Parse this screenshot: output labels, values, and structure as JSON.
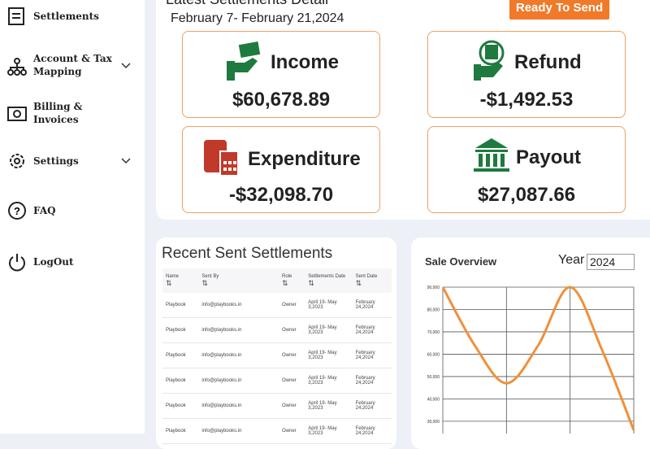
{
  "sidebar": {
    "items": [
      {
        "label": "Settlements"
      },
      {
        "label": "Account & Tax Mapping"
      },
      {
        "label": "Billing & Invoices"
      },
      {
        "label": "Settings"
      },
      {
        "label": "FAQ"
      },
      {
        "label": "LogOut"
      }
    ]
  },
  "summary": {
    "title": "Latest Settlements Detail",
    "date_range": "February 7- February 21,2024",
    "button": "Ready To Send",
    "cards": [
      {
        "label": "Income",
        "amount": "$60,678.89"
      },
      {
        "label": "Refund",
        "amount": "-$1,492.53"
      },
      {
        "label": "Expenditure",
        "amount": "-$32,098.70"
      },
      {
        "label": "Payout",
        "amount": "$27,087.66"
      }
    ]
  },
  "recent": {
    "title": "Recent Sent Settlements",
    "columns": [
      "Name",
      "Sent By",
      "Role",
      "Settlements Date",
      "Sent Date"
    ],
    "rows": [
      [
        "Playbook",
        "info@playbooks.in",
        "Owner",
        "April 19- May 3,2023",
        "February 24,2024"
      ],
      [
        "Playbook",
        "info@playbooks.in",
        "Owner",
        "April 19- May 3,2023",
        "February 24,2024"
      ],
      [
        "Playbook",
        "info@playbooks.in",
        "Owner",
        "April 19- May 3,2023",
        "February 24,2024"
      ],
      [
        "Playbook",
        "info@playbooks.in",
        "Owner",
        "April 19- May 3,2023",
        "February 24,2024"
      ],
      [
        "Playbook",
        "info@playbooks.in",
        "Owner",
        "April 19- May 3,2023",
        "February 24,2024"
      ],
      [
        "Playbook",
        "info@playbooks.in",
        "Owner",
        "April 19- May 3,2023",
        "February 24,2024"
      ]
    ]
  },
  "sale_overview": {
    "type": "line",
    "title": "Sale Overview",
    "year_label": "Year",
    "year": "2024",
    "color": "#f0903a",
    "values": [
      90000,
      64000,
      47000,
      64000,
      90000,
      62000,
      26000
    ],
    "ylim": [
      24500,
      90000
    ],
    "yticks": [
      {
        "value": 90000,
        "label": "90,000"
      },
      {
        "value": 80000,
        "label": "80,000"
      },
      {
        "value": 70000,
        "label": "70,000"
      },
      {
        "value": 60000,
        "label": "60,000"
      },
      {
        "value": 50000,
        "label": "50,000"
      },
      {
        "value": 40000,
        "label": "40,000"
      },
      {
        "value": 30000,
        "label": "30,000"
      }
    ]
  }
}
